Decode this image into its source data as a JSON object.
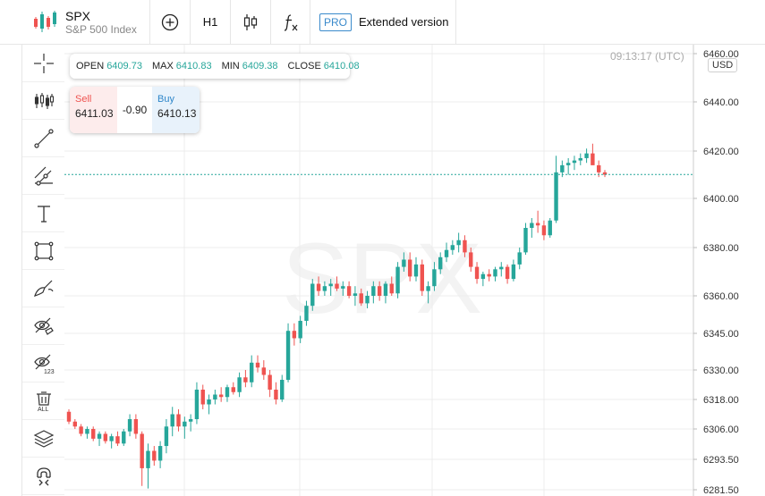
{
  "toolbar": {
    "symbol": "SPX",
    "description": "S&P 500 Index",
    "timeframe": "H1",
    "pro_badge": "PRO",
    "pro_label": "Extended version"
  },
  "left_tools": [
    "crosshair-icon",
    "indicators-icon",
    "trend-line-icon",
    "pitchfork-icon",
    "text-icon",
    "rectangle-icon",
    "brush-icon",
    "hide-drawings-icon",
    "hide-values-icon",
    "delete-all-icon",
    "layers-icon",
    "magnet-icon"
  ],
  "ohlc": {
    "open_label": "OPEN",
    "open": "6409.73",
    "max_label": "MAX",
    "max": "6410.83",
    "min_label": "MIN",
    "min": "6409.38",
    "close_label": "CLOSE",
    "close": "6410.08"
  },
  "trade": {
    "sell_label": "Sell",
    "sell_price": "6411.03",
    "spread": "-0.90",
    "buy_label": "Buy",
    "buy_price": "6410.13"
  },
  "clock": "09:13:17 (UTC)",
  "currency": "USD",
  "watermark": "SPX",
  "colors": {
    "up": "#26a69a",
    "down": "#ef5350",
    "accent": "#3a8acb"
  },
  "chart_data": {
    "type": "candlestick",
    "y_axis_labels": [
      "6460.00",
      "6440.00",
      "6420.00",
      "6400.00",
      "6380.00",
      "6360.00",
      "6345.00",
      "6330.00",
      "6318.00",
      "6306.00",
      "6293.50",
      "6281.50"
    ],
    "current_price": 6410.1,
    "grid": true,
    "candles": [
      [
        6313,
        6314,
        6308,
        6309
      ],
      [
        6309,
        6310,
        6306,
        6307
      ],
      [
        6307,
        6308,
        6303,
        6304
      ],
      [
        6304,
        6307,
        6302,
        6306
      ],
      [
        6306,
        6307,
        6301,
        6302
      ],
      [
        6302,
        6305,
        6299,
        6304
      ],
      [
        6304,
        6305,
        6300,
        6301
      ],
      [
        6301,
        6304,
        6298,
        6303
      ],
      [
        6303,
        6305,
        6299,
        6300
      ],
      [
        6300,
        6306,
        6299,
        6305
      ],
      [
        6305,
        6312,
        6303,
        6310
      ],
      [
        6310,
        6312,
        6302,
        6304
      ],
      [
        6304,
        6305,
        6283,
        6290
      ],
      [
        6290,
        6300,
        6282,
        6297
      ],
      [
        6297,
        6299,
        6291,
        6293
      ],
      [
        6293,
        6301,
        6290,
        6299
      ],
      [
        6299,
        6310,
        6296,
        6307
      ],
      [
        6307,
        6315,
        6303,
        6312
      ],
      [
        6312,
        6314,
        6305,
        6307
      ],
      [
        6307,
        6311,
        6302,
        6309
      ],
      [
        6309,
        6312,
        6305,
        6310
      ],
      [
        6310,
        6325,
        6308,
        6322
      ],
      [
        6322,
        6324,
        6314,
        6316
      ],
      [
        6316,
        6320,
        6312,
        6318
      ],
      [
        6318,
        6322,
        6316,
        6320
      ],
      [
        6320,
        6323,
        6317,
        6319
      ],
      [
        6319,
        6324,
        6317,
        6323
      ],
      [
        6323,
        6325,
        6320,
        6321
      ],
      [
        6321,
        6329,
        6319,
        6327
      ],
      [
        6327,
        6330,
        6323,
        6325
      ],
      [
        6325,
        6336,
        6323,
        6333
      ],
      [
        6333,
        6336,
        6329,
        6331
      ],
      [
        6331,
        6334,
        6326,
        6328
      ],
      [
        6328,
        6330,
        6319,
        6322
      ],
      [
        6322,
        6325,
        6316,
        6318
      ],
      [
        6318,
        6328,
        6317,
        6326
      ],
      [
        6326,
        6349,
        6325,
        6346
      ],
      [
        6346,
        6349,
        6340,
        6343
      ],
      [
        6343,
        6352,
        6341,
        6350
      ],
      [
        6350,
        6358,
        6348,
        6356
      ],
      [
        6356,
        6367,
        6354,
        6365
      ],
      [
        6365,
        6368,
        6360,
        6362
      ],
      [
        6362,
        6366,
        6360,
        6364
      ],
      [
        6364,
        6367,
        6360,
        6365
      ],
      [
        6365,
        6368,
        6362,
        6363
      ],
      [
        6363,
        6366,
        6360,
        6364
      ],
      [
        6364,
        6366,
        6359,
        6360
      ],
      [
        6360,
        6364,
        6356,
        6361
      ],
      [
        6361,
        6363,
        6356,
        6357
      ],
      [
        6357,
        6362,
        6355,
        6360
      ],
      [
        6360,
        6366,
        6357,
        6364
      ],
      [
        6364,
        6366,
        6358,
        6360
      ],
      [
        6360,
        6366,
        6357,
        6365
      ],
      [
        6365,
        6368,
        6360,
        6361
      ],
      [
        6361,
        6374,
        6359,
        6372
      ],
      [
        6372,
        6378,
        6370,
        6375
      ],
      [
        6375,
        6378,
        6366,
        6368
      ],
      [
        6368,
        6376,
        6366,
        6373
      ],
      [
        6373,
        6375,
        6360,
        6362
      ],
      [
        6362,
        6366,
        6357,
        6364
      ],
      [
        6364,
        6374,
        6362,
        6371
      ],
      [
        6371,
        6378,
        6369,
        6376
      ],
      [
        6376,
        6382,
        6374,
        6379
      ],
      [
        6379,
        6383,
        6377,
        6381
      ],
      [
        6381,
        6386,
        6378,
        6383
      ],
      [
        6383,
        6385,
        6376,
        6378
      ],
      [
        6378,
        6380,
        6370,
        6372
      ],
      [
        6372,
        6374,
        6365,
        6367
      ],
      [
        6367,
        6370,
        6364,
        6369
      ],
      [
        6369,
        6371,
        6366,
        6368
      ],
      [
        6368,
        6372,
        6366,
        6371
      ],
      [
        6371,
        6374,
        6368,
        6372
      ],
      [
        6372,
        6373,
        6365,
        6367
      ],
      [
        6367,
        6375,
        6366,
        6373
      ],
      [
        6373,
        6380,
        6371,
        6378
      ],
      [
        6378,
        6390,
        6377,
        6388
      ],
      [
        6388,
        6392,
        6384,
        6390
      ],
      [
        6390,
        6395,
        6386,
        6389
      ],
      [
        6389,
        6391,
        6383,
        6385
      ],
      [
        6385,
        6392,
        6384,
        6391
      ],
      [
        6391,
        6418,
        6390,
        6411
      ],
      [
        6411,
        6416,
        6409,
        6414
      ],
      [
        6414,
        6417,
        6410,
        6415
      ],
      [
        6415,
        6418,
        6412,
        6416
      ],
      [
        6416,
        6419,
        6414,
        6417
      ],
      [
        6417,
        6421,
        6415,
        6419
      ],
      [
        6419,
        6423,
        6415,
        6414
      ],
      [
        6414,
        6416,
        6409,
        6411
      ],
      [
        6411,
        6412,
        6409,
        6410
      ]
    ]
  }
}
